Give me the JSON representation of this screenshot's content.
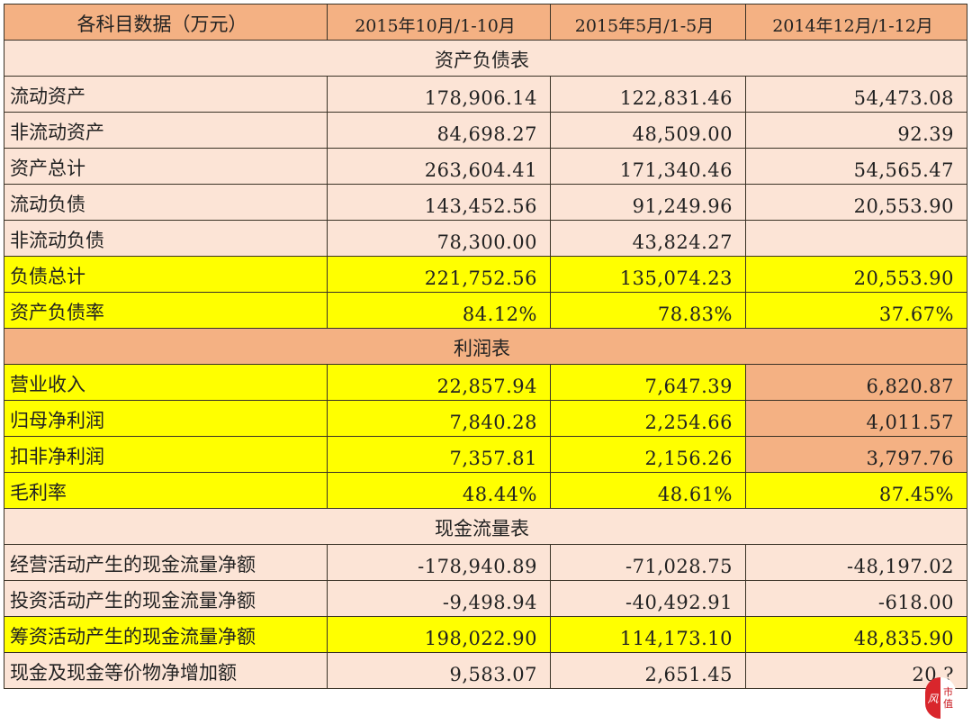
{
  "header": {
    "col0": "各科目数据（万元）",
    "col1": "2015年10月/1-10月",
    "col2": "2015年5月/1-5月",
    "col3": "2014年12月/1-12月"
  },
  "sections": {
    "balance": {
      "title": "资产负债表",
      "rows": [
        {
          "label": "流动资产",
          "v1": "178,906.14",
          "v2": "122,831.46",
          "v3": "54,473.08"
        },
        {
          "label": "非流动资产",
          "v1": "84,698.27",
          "v2": "48,509.00",
          "v3": "92.39"
        },
        {
          "label": "资产总计",
          "v1": "263,604.41",
          "v2": "171,340.46",
          "v3": "54,565.47"
        },
        {
          "label": "流动负债",
          "v1": "143,452.56",
          "v2": "91,249.96",
          "v3": "20,553.90"
        },
        {
          "label": "非流动负债",
          "v1": "78,300.00",
          "v2": "43,824.27",
          "v3": ""
        },
        {
          "label": "负债总计",
          "v1": "221,752.56",
          "v2": "135,074.23",
          "v3": "20,553.90"
        },
        {
          "label": "资产负债率",
          "v1": "84.12%",
          "v2": "78.83%",
          "v3": "37.67%"
        }
      ]
    },
    "income": {
      "title": "利润表",
      "rows": [
        {
          "label": "营业收入",
          "v1": "22,857.94",
          "v2": "7,647.39",
          "v3": "6,820.87"
        },
        {
          "label": "归母净利润",
          "v1": "7,840.28",
          "v2": "2,254.66",
          "v3": "4,011.57"
        },
        {
          "label": "扣非净利润",
          "v1": "7,357.81",
          "v2": "2,156.26",
          "v3": "3,797.76"
        },
        {
          "label": "毛利率",
          "v1": "48.44%",
          "v2": "48.61%",
          "v3": "87.45%"
        }
      ]
    },
    "cashflow": {
      "title": "现金流量表",
      "rows": [
        {
          "label": "经营活动产生的现金流量净额",
          "v1": "-178,940.89",
          "v2": "-71,028.75",
          "v3": "-48,197.02"
        },
        {
          "label": "投资活动产生的现金流量净额",
          "v1": "-9,498.94",
          "v2": "-40,492.91",
          "v3": "-618.00"
        },
        {
          "label": "筹资活动产生的现金流量净额",
          "v1": "198,022.90",
          "v2": "114,173.10",
          "v3": "48,835.90"
        },
        {
          "label": "现金及现金等价物净增加额",
          "v1": "9,583.07",
          "v2": "2,651.45",
          "v3": "20.?"
        }
      ]
    }
  },
  "colors": {
    "header_bg": "#f4b183",
    "body_bg": "#fce4d6",
    "highlight": "#ffff00",
    "border": "#3a3226"
  },
  "logo": {
    "left_glyph": "风",
    "right_glyph_1": "市",
    "right_glyph_2": "值"
  }
}
